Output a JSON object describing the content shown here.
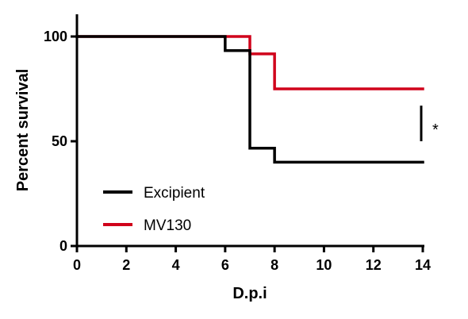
{
  "chart_data": {
    "type": "line",
    "step": true,
    "xlabel": "D.p.i",
    "ylabel": "Percent survival",
    "xlim": [
      0,
      14
    ],
    "ylim": [
      0,
      100
    ],
    "x_ticks": [
      0,
      2,
      4,
      6,
      8,
      10,
      12,
      14
    ],
    "y_ticks": [
      0,
      50,
      100
    ],
    "grid": false,
    "legend_position": "bottom-left",
    "series": [
      {
        "name": "Excipient",
        "color": "#000000",
        "x": [
          0,
          6,
          7,
          8,
          14
        ],
        "y": [
          100,
          93.3,
          46.7,
          40,
          40
        ]
      },
      {
        "name": "MV130",
        "color": "#d0021b",
        "x": [
          0,
          6,
          7,
          8,
          14
        ],
        "y": [
          100,
          100,
          91.7,
          75,
          75
        ]
      }
    ],
    "annotation": {
      "text": "*",
      "x": 14,
      "y_from": 50,
      "y_to": 67
    }
  }
}
